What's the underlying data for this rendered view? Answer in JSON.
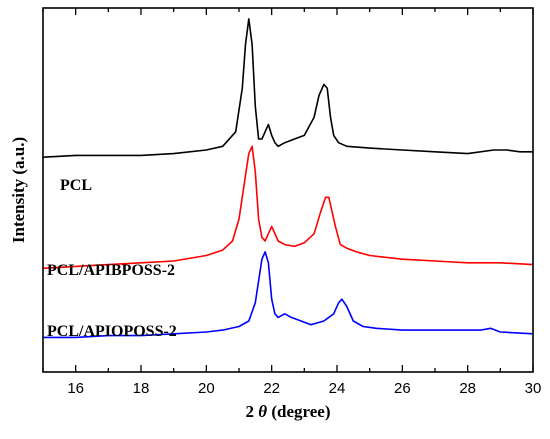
{
  "chart_data": {
    "type": "line",
    "title": "",
    "xlabel": "2 θ (degree)",
    "xlabel_prefix": "2 ",
    "xlabel_symbol": "θ",
    "xlabel_suffix": " (degree)",
    "ylabel": "Intensity (a.u.)",
    "xlim": [
      15,
      30
    ],
    "ylim": [
      0,
      100
    ],
    "x_ticks": [
      16,
      18,
      20,
      22,
      24,
      26,
      28,
      30
    ],
    "x_tick_labels": [
      "16",
      "18",
      "20",
      "22",
      "24",
      "26",
      "28",
      "30"
    ],
    "grid": false,
    "legend": "none",
    "series": [
      {
        "name": "PCL",
        "color": "#000000",
        "x": [
          15,
          16,
          17,
          18,
          19,
          20,
          20.5,
          20.9,
          21.1,
          21.2,
          21.3,
          21.4,
          21.5,
          21.6,
          21.7,
          21.8,
          21.9,
          22.0,
          22.1,
          22.2,
          22.4,
          22.7,
          23.0,
          23.3,
          23.45,
          23.6,
          23.7,
          23.8,
          23.9,
          24.05,
          24.3,
          25,
          26,
          27,
          28,
          28.8,
          29.2,
          29.6,
          30
        ],
        "y": [
          59,
          59.5,
          59.5,
          59.5,
          60,
          61,
          62,
          66,
          78,
          90,
          97,
          90,
          73,
          64,
          64,
          66,
          68,
          65,
          63,
          62,
          63,
          64,
          65,
          70,
          76,
          79,
          78,
          70,
          65,
          63,
          62,
          61.5,
          61,
          60.5,
          60,
          61,
          61,
          60.5,
          60.5
        ]
      },
      {
        "name": "PCL/APIBPOSS-2",
        "color": "#ff0000",
        "x": [
          15,
          16,
          17,
          18,
          19,
          20,
          20.5,
          20.8,
          21.0,
          21.2,
          21.3,
          21.4,
          21.5,
          21.6,
          21.7,
          21.8,
          21.9,
          22.0,
          22.1,
          22.2,
          22.4,
          22.7,
          23.0,
          23.3,
          23.5,
          23.65,
          23.75,
          23.85,
          23.95,
          24.1,
          24.3,
          24.6,
          25,
          26,
          27,
          28,
          29,
          30
        ],
        "y": [
          28.5,
          29,
          29.5,
          30,
          30.5,
          32,
          33.5,
          36,
          42,
          54,
          60,
          62,
          55,
          42,
          37,
          36,
          38,
          40,
          38,
          36,
          35,
          34.5,
          35.5,
          38,
          44,
          48,
          48,
          44,
          40,
          35,
          34,
          33,
          32,
          31,
          30.5,
          30,
          30,
          29.5
        ]
      },
      {
        "name": "PCL/APIOPOSS-2",
        "color": "#0000ff",
        "x": [
          15,
          16,
          17,
          18,
          19,
          20,
          20.5,
          21.0,
          21.3,
          21.5,
          21.6,
          21.7,
          21.8,
          21.9,
          22.0,
          22.1,
          22.2,
          22.4,
          22.6,
          22.9,
          23.2,
          23.6,
          23.9,
          24.05,
          24.15,
          24.3,
          24.5,
          24.8,
          25.2,
          26,
          27,
          28,
          28.4,
          28.7,
          29,
          30
        ],
        "y": [
          9.5,
          9.5,
          10,
          10,
          10.5,
          11,
          11.5,
          12.5,
          14,
          19,
          25,
          31,
          33,
          30,
          20,
          16,
          15,
          16,
          15,
          14,
          13,
          14,
          16,
          19,
          20,
          18,
          14,
          12.5,
          12,
          11.5,
          11.5,
          11.5,
          11.5,
          12,
          11,
          10.5
        ]
      }
    ]
  }
}
